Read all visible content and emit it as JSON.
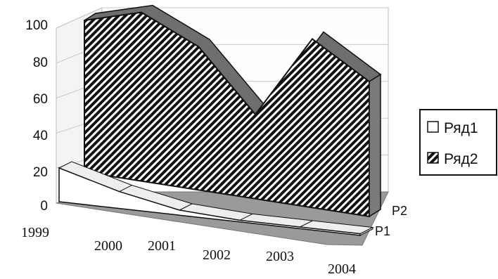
{
  "chart_data": {
    "type": "area",
    "subtype": "3d-area",
    "title": "",
    "xlabel": "",
    "ylabel": "",
    "ylim": [
      0,
      100
    ],
    "yticks": [
      "0",
      "20",
      "40",
      "60",
      "80",
      "100"
    ],
    "categories": [
      "1999",
      "2000",
      "2001",
      "2002",
      "2003",
      "2004"
    ],
    "depth_labels": [
      "P1",
      "P2"
    ],
    "grid": true,
    "legend": "right",
    "series": [
      {
        "name": "Ряд1",
        "fill": "white",
        "values": [
          20,
          10,
          3,
          1,
          1,
          1
        ]
      },
      {
        "name": "Ряд2",
        "fill": "hatched",
        "values": [
          90,
          100,
          85,
          50,
          100,
          80
        ]
      }
    ],
    "colors": {
      "ink": "#111111",
      "wall": "#ffffff",
      "floor": "#9a9a9a"
    }
  }
}
